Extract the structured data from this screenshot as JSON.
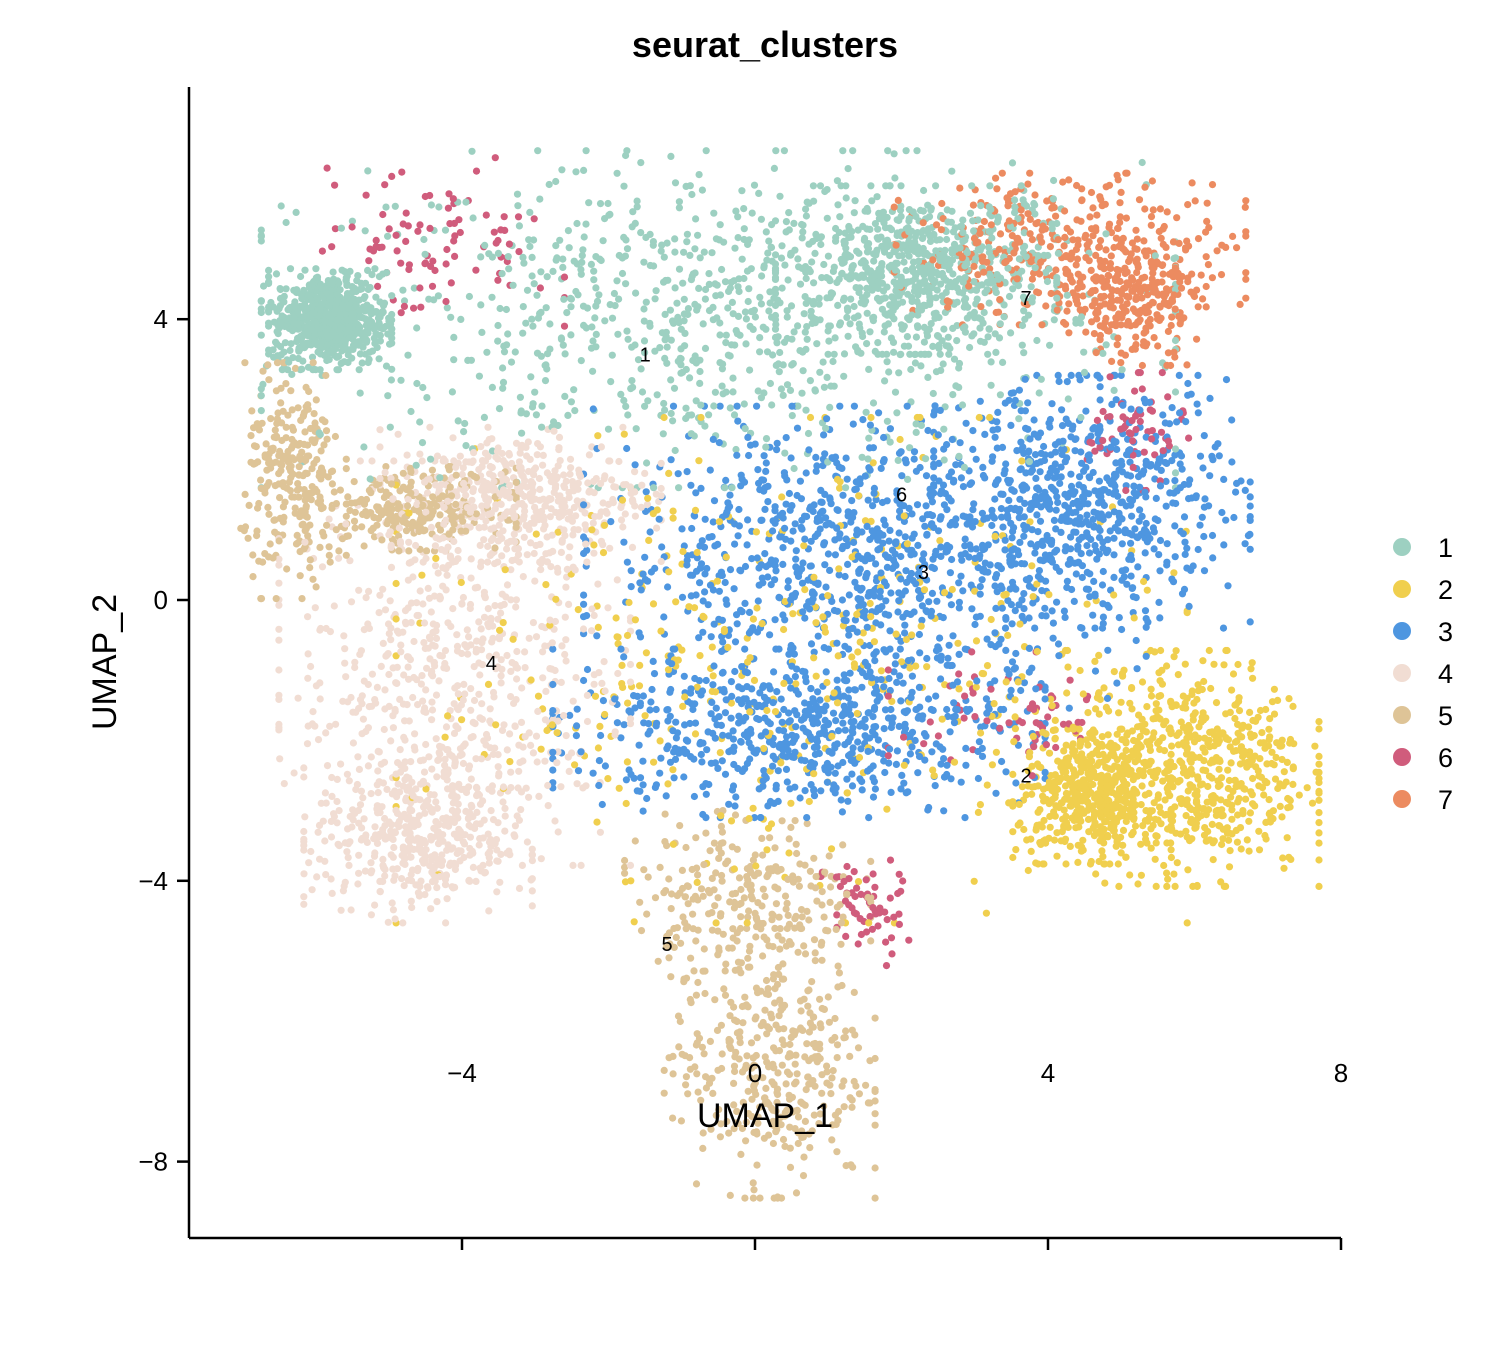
{
  "chart_data": {
    "type": "scatter",
    "title": "seurat_clusters",
    "xlabel": "UMAP_1",
    "ylabel": "UMAP_2",
    "xlim": [
      -7.8,
      8.0
    ],
    "ylim": [
      -9.1,
      7.3
    ],
    "x_ticks": [
      {
        "value": -4,
        "label": "−4"
      },
      {
        "value": 0,
        "label": "0"
      },
      {
        "value": 4,
        "label": "4"
      },
      {
        "value": 8,
        "label": "8"
      }
    ],
    "y_ticks": [
      {
        "value": 4,
        "label": "4"
      },
      {
        "value": 0,
        "label": "0"
      },
      {
        "value": -4,
        "label": "−4"
      },
      {
        "value": -8,
        "label": "−8"
      }
    ],
    "legend_position": "right",
    "grid": false,
    "series": [
      {
        "name": "1",
        "color": "#9dd0c1",
        "regions": [
          {
            "cx": -0.5,
            "cy": 4.0,
            "rx": 5.2,
            "ry": 2.0
          },
          {
            "cx": 2.2,
            "cy": 4.7,
            "rx": 1.6,
            "ry": 1.0
          },
          {
            "cx": -5.8,
            "cy": 4.0,
            "rx": 0.7,
            "ry": 0.6
          }
        ],
        "n": 2100
      },
      {
        "name": "2",
        "color": "#f0cf4e",
        "regions": [
          {
            "cx": 5.9,
            "cy": -2.4,
            "rx": 1.5,
            "ry": 1.4
          },
          {
            "cx": 4.6,
            "cy": -2.8,
            "rx": 0.9,
            "ry": 0.8
          },
          {
            "cx": 0.5,
            "cy": -1.0,
            "rx": 4.5,
            "ry": 3.0
          }
        ],
        "n": 1500
      },
      {
        "name": "3",
        "color": "#4e96e0",
        "regions": [
          {
            "cx": 1.5,
            "cy": 0.6,
            "rx": 3.2,
            "ry": 1.8
          },
          {
            "cx": 4.6,
            "cy": 1.4,
            "rx": 1.8,
            "ry": 1.5
          },
          {
            "cx": 0.6,
            "cy": -1.9,
            "rx": 2.8,
            "ry": 1.0
          }
        ],
        "n": 2200
      },
      {
        "name": "4",
        "color": "#f1ddd3",
        "regions": [
          {
            "cx": -4.1,
            "cy": -0.9,
            "rx": 2.0,
            "ry": 2.4
          },
          {
            "cx": -4.6,
            "cy": -3.4,
            "rx": 1.3,
            "ry": 1.0
          },
          {
            "cx": -3.2,
            "cy": 1.5,
            "rx": 1.6,
            "ry": 0.8
          }
        ],
        "n": 1500
      },
      {
        "name": "5",
        "color": "#dec497",
        "regions": [
          {
            "cx": 0.2,
            "cy": -6.6,
            "rx": 1.2,
            "ry": 1.6
          },
          {
            "cx": -0.1,
            "cy": -4.2,
            "rx": 1.4,
            "ry": 1.0
          },
          {
            "cx": -6.3,
            "cy": 1.7,
            "rx": 0.6,
            "ry": 1.4
          },
          {
            "cx": -4.7,
            "cy": 1.3,
            "rx": 1.2,
            "ry": 0.5
          }
        ],
        "n": 1200
      },
      {
        "name": "6",
        "color": "#d05c7c",
        "regions": [
          {
            "cx": -4.4,
            "cy": 5.1,
            "rx": 1.5,
            "ry": 1.0
          },
          {
            "cx": 3.5,
            "cy": -1.7,
            "rx": 1.4,
            "ry": 0.8
          },
          {
            "cx": 5.2,
            "cy": 2.4,
            "rx": 0.6,
            "ry": 0.7
          },
          {
            "cx": 1.5,
            "cy": -4.4,
            "rx": 0.5,
            "ry": 0.7
          }
        ],
        "n": 280
      },
      {
        "name": "7",
        "color": "#ec8b60",
        "regions": [
          {
            "cx": 4.3,
            "cy": 5.0,
            "rx": 2.0,
            "ry": 0.9
          },
          {
            "cx": 5.2,
            "cy": 4.3,
            "rx": 0.8,
            "ry": 0.8
          }
        ],
        "n": 560
      }
    ],
    "cluster_labels": [
      {
        "text": "1",
        "x": -1.5,
        "y": 3.5
      },
      {
        "text": "2",
        "x": 3.7,
        "y": -2.5
      },
      {
        "text": "3",
        "x": 2.3,
        "y": 0.4
      },
      {
        "text": "4",
        "x": -3.6,
        "y": -0.9
      },
      {
        "text": "5",
        "x": -1.2,
        "y": -4.9
      },
      {
        "text": "6",
        "x": 2.0,
        "y": 1.5
      },
      {
        "text": "7",
        "x": 3.7,
        "y": 4.3
      }
    ]
  }
}
